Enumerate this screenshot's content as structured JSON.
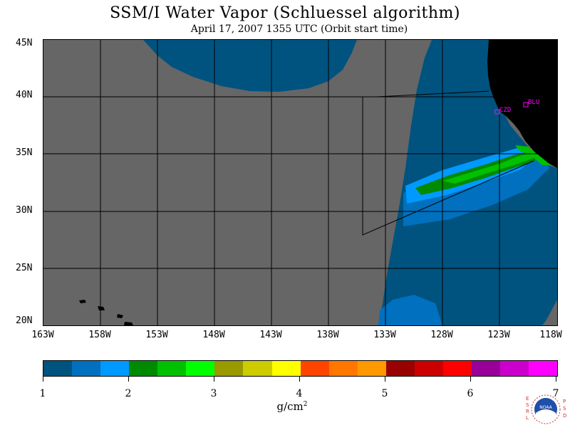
{
  "header": {
    "title": "SSM/I Water Vapor (Schluessel algorithm)",
    "subtitle": "April 17, 2007  1355 UTC  (Orbit start time)"
  },
  "map": {
    "region": "Eastern North Pacific",
    "latitude_labels": [
      "45N",
      "40N",
      "35N",
      "30N",
      "25N",
      "20N"
    ],
    "longitude_labels": [
      "163W",
      "158W",
      "153W",
      "148W",
      "143W",
      "138W",
      "133W",
      "128W",
      "123W",
      "118W"
    ],
    "stations": [
      {
        "id": "CZD",
        "label": "CZD"
      },
      {
        "id": "BLU",
        "label": "BLU"
      }
    ],
    "colors": {
      "no_data": "#666666",
      "land": "#000000",
      "station_marker": "#ff00ff"
    }
  },
  "colorbar": {
    "tick_labels": [
      "1",
      "2",
      "3",
      "4",
      "5",
      "6",
      "7"
    ],
    "units": "g/cm",
    "units_exponent": "2",
    "colors": [
      "#00537f",
      "#0070bf",
      "#0099ff",
      "#008a00",
      "#00c000",
      "#00ff00",
      "#999900",
      "#cccc00",
      "#ffff00",
      "#ff4400",
      "#ff7700",
      "#ff9900",
      "#990000",
      "#cc0000",
      "#ff0000",
      "#990099",
      "#cc00cc",
      "#ff00ff"
    ]
  },
  "logo": {
    "left_text": "ESRL",
    "center_text": "NOAA",
    "right_text": "PSD"
  }
}
